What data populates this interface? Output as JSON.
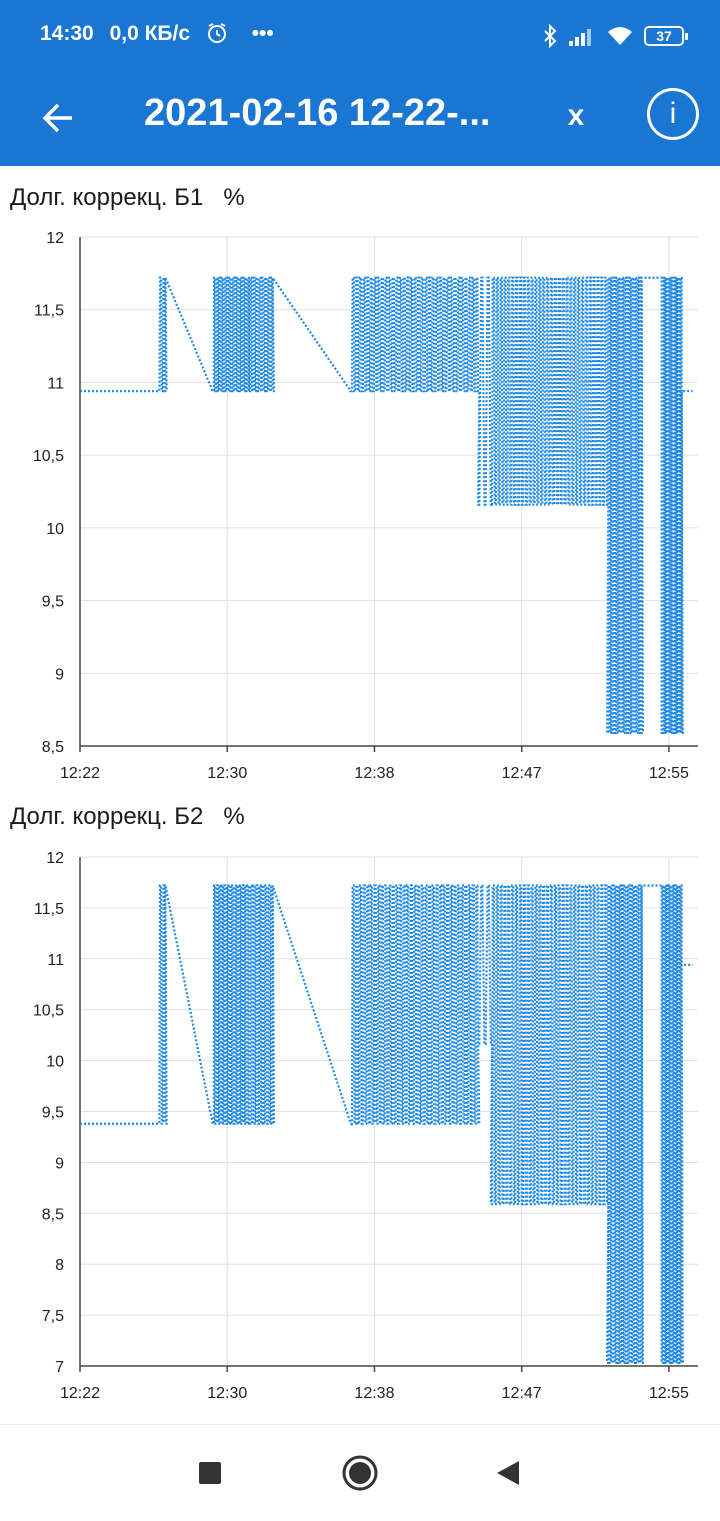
{
  "status_bar": {
    "time": "14:30",
    "net_speed": "0,0 КБ/с",
    "more": "•••",
    "battery": "37",
    "icons": [
      "alarm-icon",
      "bluetooth-icon",
      "signal-icon",
      "wifi-icon",
      "battery-icon"
    ]
  },
  "app_bar": {
    "title": "2021-02-16 12-22-...",
    "close_label": "x",
    "info_label": "i",
    "back_icon": "arrow-back-icon"
  },
  "colors": {
    "primary": "#1976d2",
    "series": "#1e88e5",
    "grid": "#e0e0e0"
  },
  "chart_data": [
    {
      "type": "line",
      "title": "Долг. коррекц. Б1",
      "unit": "%",
      "x_ticks": [
        "12:22",
        "12:30",
        "12:38",
        "12:47",
        "12:55"
      ],
      "y_ticks": [
        "12",
        "11,5",
        "11",
        "10,5",
        "10",
        "9,5",
        "9",
        "8,5"
      ],
      "ylim": [
        8.5,
        12
      ],
      "xlim": [
        0,
        34
      ],
      "grid": true,
      "series": [
        {
          "values_x": [
            0,
            4.3
          ],
          "values_y": [
            10.94,
            10.94
          ],
          "style": "solid"
        }
      ],
      "levels": {
        "base": 10.94,
        "high": 11.72,
        "mid": 10.16,
        "low": 8.59,
        "end": 10.94
      },
      "segments": [
        {
          "x0": 0,
          "x1": 4.3,
          "pattern": "flat",
          "y": 10.94
        },
        {
          "x0": 4.3,
          "x1": 4.7,
          "pattern": "osc",
          "ya": 10.94,
          "yb": 11.72,
          "n": 4
        },
        {
          "x0": 4.7,
          "x1": 7.3,
          "pattern": "ramp",
          "ya": 11.72,
          "yb": 10.94
        },
        {
          "x0": 7.3,
          "x1": 9.3,
          "pattern": "osc",
          "ya": 10.94,
          "yb": 11.72,
          "n": 28
        },
        {
          "x0": 9.3,
          "x1": 10.6,
          "pattern": "osc",
          "ya": 10.94,
          "yb": 11.72,
          "n": 16
        },
        {
          "x0": 10.6,
          "x1": 14.9,
          "pattern": "ramp",
          "ya": 11.72,
          "yb": 10.94
        },
        {
          "x0": 14.9,
          "x1": 21.9,
          "pattern": "osc",
          "ya": 10.94,
          "yb": 11.72,
          "n": 70
        },
        {
          "x0": 21.9,
          "x1": 22.6,
          "pattern": "osc",
          "ya": 10.16,
          "yb": 11.72,
          "n": 4
        },
        {
          "x0": 22.6,
          "x1": 29.0,
          "pattern": "osc",
          "ya": 10.16,
          "yb": 11.72,
          "n": 60
        },
        {
          "x0": 29.0,
          "x1": 30.9,
          "pattern": "osc",
          "ya": 8.59,
          "yb": 11.72,
          "n": 26
        },
        {
          "x0": 30.9,
          "x1": 32.0,
          "pattern": "flat",
          "y": 11.72
        },
        {
          "x0": 32.0,
          "x1": 33.1,
          "pattern": "osc",
          "ya": 8.59,
          "yb": 11.72,
          "n": 18
        },
        {
          "x0": 33.1,
          "x1": 33.7,
          "pattern": "flat",
          "y": 10.94
        }
      ]
    },
    {
      "type": "line",
      "title": "Долг. коррекц. Б2",
      "unit": "%",
      "x_ticks": [
        "12:22",
        "12:30",
        "12:38",
        "12:47",
        "12:55"
      ],
      "y_ticks": [
        "12",
        "11,5",
        "11",
        "10,5",
        "10",
        "9,5",
        "9",
        "8,5",
        "8",
        "7,5",
        "7"
      ],
      "ylim": [
        7,
        12
      ],
      "xlim": [
        0,
        34
      ],
      "grid": true,
      "levels": {
        "base": 9.38,
        "high": 11.72,
        "mid": 8.59,
        "low": 7.03,
        "end": 10.94
      },
      "segments": [
        {
          "x0": 0,
          "x1": 4.3,
          "pattern": "flat",
          "y": 9.38
        },
        {
          "x0": 4.3,
          "x1": 4.7,
          "pattern": "osc",
          "ya": 9.38,
          "yb": 11.72,
          "n": 4
        },
        {
          "x0": 4.7,
          "x1": 7.3,
          "pattern": "ramp",
          "ya": 11.72,
          "yb": 9.38
        },
        {
          "x0": 7.3,
          "x1": 9.3,
          "pattern": "osc",
          "ya": 9.38,
          "yb": 11.72,
          "n": 28
        },
        {
          "x0": 9.3,
          "x1": 10.6,
          "pattern": "osc",
          "ya": 9.38,
          "yb": 11.72,
          "n": 16
        },
        {
          "x0": 10.6,
          "x1": 14.9,
          "pattern": "ramp",
          "ya": 11.72,
          "yb": 9.38
        },
        {
          "x0": 14.9,
          "x1": 21.9,
          "pattern": "osc",
          "ya": 9.38,
          "yb": 11.72,
          "n": 70
        },
        {
          "x0": 21.9,
          "x1": 22.6,
          "pattern": "osc",
          "ya": 10.16,
          "yb": 11.72,
          "n": 4
        },
        {
          "x0": 22.6,
          "x1": 29.0,
          "pattern": "osc",
          "ya": 8.59,
          "yb": 11.72,
          "n": 60
        },
        {
          "x0": 29.0,
          "x1": 30.9,
          "pattern": "osc",
          "ya": 7.03,
          "yb": 11.72,
          "n": 26
        },
        {
          "x0": 30.9,
          "x1": 32.0,
          "pattern": "flat",
          "y": 11.72
        },
        {
          "x0": 32.0,
          "x1": 33.1,
          "pattern": "osc",
          "ya": 7.03,
          "yb": 11.72,
          "n": 18
        },
        {
          "x0": 33.1,
          "x1": 33.7,
          "pattern": "flat",
          "y": 10.94
        }
      ]
    }
  ],
  "nav_bar": {
    "icons": [
      "recents-square-icon",
      "home-circle-icon",
      "back-triangle-icon"
    ]
  }
}
